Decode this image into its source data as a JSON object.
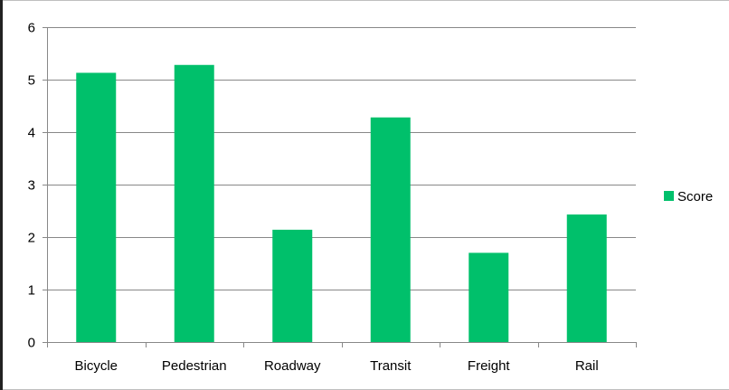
{
  "chart_data": {
    "type": "bar",
    "categories": [
      "Bicycle",
      "Pedestrian",
      "Roadway",
      "Transit",
      "Freight",
      "Rail"
    ],
    "series": [
      {
        "name": "Score",
        "values": [
          5.13,
          5.28,
          2.14,
          4.28,
          1.7,
          2.43
        ],
        "color": "#00c06b"
      }
    ],
    "yticks": [
      "0",
      "1",
      "2",
      "3",
      "4",
      "5",
      "6"
    ],
    "ylim": [
      0,
      6
    ],
    "grid": true,
    "legend_position": "right",
    "title": "",
    "xlabel": "",
    "ylabel": ""
  }
}
